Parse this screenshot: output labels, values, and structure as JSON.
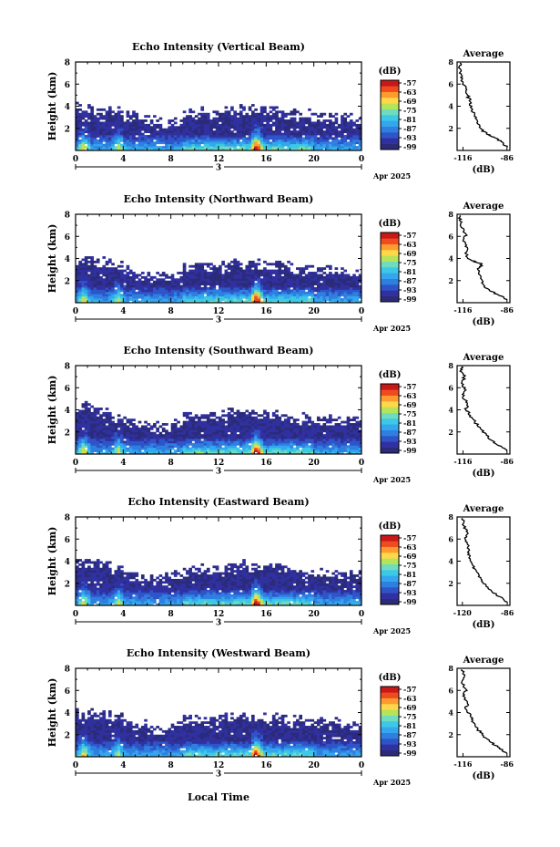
{
  "figure": {
    "footer_xlabel": "Local Time",
    "colors": {
      "colormap": [
        "#2b2b7a",
        "#3030a0",
        "#2e55c8",
        "#2f7fe0",
        "#33a6ee",
        "#3cc8e6",
        "#6fdcc0",
        "#b5e35a",
        "#ffd84a",
        "#ff9a2e",
        "#f04b1f",
        "#c81818"
      ],
      "line": "#000000",
      "background": "#ffffff"
    }
  },
  "chart_data": [
    {
      "type": "heatmap",
      "title": "Echo Intensity (Vertical Beam)",
      "ylabel": "Height (km)",
      "xlabel": "",
      "xticks": [
        "0",
        "4",
        "8",
        "12",
        "16",
        "20",
        "0"
      ],
      "day_label": "3",
      "date_label": "Apr 2025",
      "yticks": [
        "2",
        "4",
        "6",
        "8"
      ],
      "ylim": [
        0,
        8
      ],
      "xlim": [
        0,
        24
      ],
      "colorbar": {
        "label": "(dB)",
        "ticks": [
          "-57",
          "-63",
          "-69",
          "-75",
          "-81",
          "-87",
          "-93",
          "-99"
        ]
      },
      "top_height_km": [
        3.6,
        3.5,
        3.3,
        3.0,
        2.8,
        2.5,
        2.3,
        2.2,
        2.5,
        2.9,
        3.0,
        3.0,
        3.1,
        3.3,
        3.4,
        3.3,
        3.2,
        3.0,
        2.9,
        2.8,
        2.7,
        2.7,
        2.6,
        2.5
      ],
      "average": {
        "title": "Average",
        "xlabel": "(dB)",
        "xticks": [
          "-116",
          "-86"
        ],
        "xlim": [
          -120,
          -84
        ],
        "yticks": [
          "2",
          "4",
          "6",
          "8"
        ],
        "ylim": [
          0,
          8
        ],
        "profile": [
          [
            -86,
            0.3
          ],
          [
            -90,
            0.8
          ],
          [
            -95,
            1.2
          ],
          [
            -100,
            1.5
          ],
          [
            -104,
            2.0
          ],
          [
            -106,
            2.6
          ],
          [
            -108,
            3.2
          ],
          [
            -110,
            3.8
          ],
          [
            -111,
            4.4
          ],
          [
            -113,
            5.0
          ],
          [
            -114,
            5.6
          ],
          [
            -116,
            6.2
          ],
          [
            -117,
            6.8
          ],
          [
            -118,
            7.4
          ],
          [
            -118,
            7.9
          ]
        ]
      }
    },
    {
      "type": "heatmap",
      "title": "Echo Intensity (Northward Beam)",
      "ylabel": "Height (km)",
      "xlabel": "",
      "xticks": [
        "0",
        "4",
        "8",
        "12",
        "16",
        "20",
        "0"
      ],
      "day_label": "3",
      "date_label": "Apr 2025",
      "yticks": [
        "2",
        "4",
        "6",
        "8"
      ],
      "ylim": [
        0,
        8
      ],
      "xlim": [
        0,
        24
      ],
      "colorbar": {
        "label": "(dB)",
        "ticks": [
          "-57",
          "-63",
          "-69",
          "-75",
          "-81",
          "-87",
          "-93",
          "-99"
        ]
      },
      "top_height_km": [
        3.5,
        3.4,
        3.2,
        2.9,
        2.6,
        2.3,
        2.0,
        1.9,
        2.3,
        2.9,
        3.0,
        2.9,
        3.0,
        3.2,
        3.3,
        3.2,
        3.1,
        3.0,
        2.8,
        2.7,
        2.6,
        2.6,
        2.5,
        2.4
      ],
      "average": {
        "title": "Average",
        "xlabel": "(dB)",
        "xticks": [
          "-116",
          "-86"
        ],
        "xlim": [
          -120,
          -84
        ],
        "yticks": [
          "2",
          "4",
          "6",
          "8"
        ],
        "ylim": [
          0,
          8
        ],
        "profile": [
          [
            -86,
            0.3
          ],
          [
            -92,
            0.7
          ],
          [
            -98,
            1.1
          ],
          [
            -102,
            1.6
          ],
          [
            -104,
            2.2
          ],
          [
            -106,
            3.0
          ],
          [
            -103,
            3.5
          ],
          [
            -110,
            3.8
          ],
          [
            -114,
            4.2
          ],
          [
            -113,
            5.0
          ],
          [
            -116,
            5.6
          ],
          [
            -114,
            6.2
          ],
          [
            -117,
            6.8
          ],
          [
            -118,
            7.4
          ],
          [
            -118,
            7.9
          ]
        ]
      }
    },
    {
      "type": "heatmap",
      "title": "Echo Intensity (Southward Beam)",
      "ylabel": "Height (km)",
      "xlabel": "",
      "xticks": [
        "0",
        "4",
        "8",
        "12",
        "16",
        "20",
        "0"
      ],
      "day_label": "3",
      "date_label": "Apr 2025",
      "yticks": [
        "2",
        "4",
        "6",
        "8"
      ],
      "ylim": [
        0,
        8
      ],
      "xlim": [
        0,
        24
      ],
      "colorbar": {
        "label": "(dB)",
        "ticks": [
          "-57",
          "-63",
          "-69",
          "-75",
          "-81",
          "-87",
          "-93",
          "-99"
        ]
      },
      "top_height_km": [
        3.8,
        3.6,
        3.4,
        3.1,
        2.8,
        2.5,
        2.2,
        2.1,
        2.5,
        2.9,
        3.0,
        3.0,
        3.2,
        3.3,
        3.4,
        3.3,
        3.2,
        3.0,
        2.9,
        2.8,
        2.7,
        2.6,
        2.6,
        2.5
      ],
      "average": {
        "title": "Average",
        "xlabel": "(dB)",
        "xticks": [
          "-116",
          "-86"
        ],
        "xlim": [
          -120,
          -84
        ],
        "yticks": [
          "2",
          "4",
          "6",
          "8"
        ],
        "ylim": [
          0,
          8
        ],
        "profile": [
          [
            -86,
            0.3
          ],
          [
            -90,
            0.7
          ],
          [
            -96,
            1.2
          ],
          [
            -100,
            1.7
          ],
          [
            -104,
            2.3
          ],
          [
            -108,
            2.9
          ],
          [
            -111,
            3.5
          ],
          [
            -114,
            4.0
          ],
          [
            -113,
            4.6
          ],
          [
            -116,
            5.2
          ],
          [
            -114,
            5.8
          ],
          [
            -117,
            6.4
          ],
          [
            -115,
            7.0
          ],
          [
            -118,
            7.5
          ],
          [
            -117,
            7.9
          ]
        ]
      }
    },
    {
      "type": "heatmap",
      "title": "Echo Intensity (Eastward Beam)",
      "ylabel": "Height (km)",
      "xlabel": "",
      "xticks": [
        "0",
        "4",
        "8",
        "12",
        "16",
        "20",
        "0"
      ],
      "day_label": "3",
      "date_label": "Apr 2025",
      "yticks": [
        "2",
        "4",
        "6",
        "8"
      ],
      "ylim": [
        0,
        8
      ],
      "xlim": [
        0,
        24
      ],
      "colorbar": {
        "label": "(dB)",
        "ticks": [
          "-57",
          "-63",
          "-69",
          "-75",
          "-81",
          "-87",
          "-93",
          "-99"
        ]
      },
      "top_height_km": [
        3.6,
        3.5,
        3.3,
        3.0,
        2.7,
        2.4,
        2.1,
        2.0,
        2.4,
        2.8,
        3.0,
        3.0,
        3.1,
        3.2,
        3.3,
        3.2,
        3.1,
        3.0,
        2.9,
        2.7,
        2.6,
        2.6,
        2.5,
        2.4
      ],
      "average": {
        "title": "Average",
        "xlabel": "(dB)",
        "xticks": [
          "-120",
          "-86"
        ],
        "xlim": [
          -124,
          -84
        ],
        "yticks": [
          "2",
          "4",
          "6",
          "8"
        ],
        "ylim": [
          0,
          8
        ],
        "profile": [
          [
            -86,
            0.3
          ],
          [
            -92,
            0.8
          ],
          [
            -98,
            1.3
          ],
          [
            -102,
            1.8
          ],
          [
            -106,
            2.4
          ],
          [
            -109,
            3.0
          ],
          [
            -112,
            3.6
          ],
          [
            -114,
            4.2
          ],
          [
            -116,
            4.8
          ],
          [
            -115,
            5.4
          ],
          [
            -118,
            6.0
          ],
          [
            -116,
            6.6
          ],
          [
            -119,
            7.2
          ],
          [
            -120,
            7.9
          ]
        ]
      }
    },
    {
      "type": "heatmap",
      "title": "Echo Intensity (Westward Beam)",
      "ylabel": "Height (km)",
      "xlabel": "",
      "xticks": [
        "0",
        "4",
        "8",
        "12",
        "16",
        "20",
        "0"
      ],
      "day_label": "3",
      "date_label": "Apr 2025",
      "yticks": [
        "2",
        "4",
        "6",
        "8"
      ],
      "ylim": [
        0,
        8
      ],
      "xlim": [
        0,
        24
      ],
      "colorbar": {
        "label": "(dB)",
        "ticks": [
          "-57",
          "-63",
          "-69",
          "-75",
          "-81",
          "-87",
          "-93",
          "-99"
        ]
      },
      "top_height_km": [
        3.6,
        3.5,
        3.4,
        3.1,
        2.8,
        2.5,
        2.2,
        2.1,
        2.5,
        2.9,
        3.0,
        3.0,
        3.2,
        3.3,
        3.3,
        3.2,
        3.1,
        3.0,
        2.9,
        2.8,
        2.7,
        2.6,
        2.5,
        2.5
      ],
      "average": {
        "title": "Average",
        "xlabel": "(dB)",
        "xticks": [
          "-116",
          "-86"
        ],
        "xlim": [
          -120,
          -84
        ],
        "yticks": [
          "2",
          "4",
          "6",
          "8"
        ],
        "ylim": [
          0,
          8
        ],
        "profile": [
          [
            -86,
            0.3
          ],
          [
            -91,
            0.8
          ],
          [
            -97,
            1.3
          ],
          [
            -102,
            1.9
          ],
          [
            -106,
            2.5
          ],
          [
            -109,
            3.1
          ],
          [
            -111,
            3.7
          ],
          [
            -114,
            4.3
          ],
          [
            -113,
            4.9
          ],
          [
            -116,
            5.5
          ],
          [
            -114,
            6.1
          ],
          [
            -117,
            6.7
          ],
          [
            -115,
            7.3
          ],
          [
            -117,
            7.9
          ]
        ]
      }
    }
  ]
}
